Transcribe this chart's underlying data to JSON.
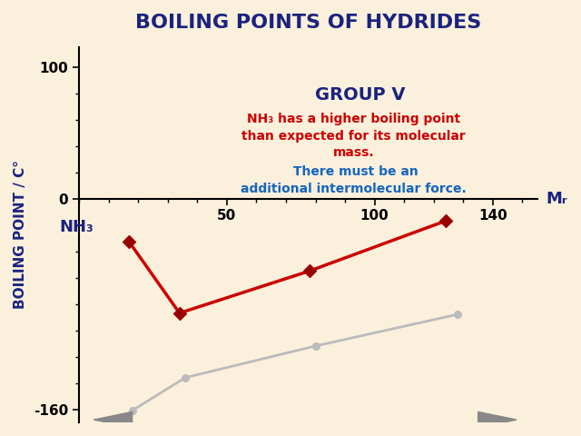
{
  "title": "BOILING POINTS OF HYDRIDES",
  "xlabel": "Mᵣ",
  "ylabel": "BOILING POINT / C°",
  "background_color": "#FAF0DC",
  "xlim": [
    0,
    155
  ],
  "ylim": [
    -170,
    115
  ],
  "yticks": [
    0,
    100,
    -160
  ],
  "xticks": [
    50,
    100,
    140
  ],
  "group_v_label": "GROUP V",
  "annotation_red": "NH₃ has a higher boiling point\nthan expected for its molecular\nmass.",
  "annotation_blue": " There must be an\nadditional intermolecular force.",
  "nh3_label": "NH₃",
  "red_x": [
    17,
    34,
    78,
    124
  ],
  "red_y": [
    -33,
    -87,
    -55,
    -17
  ],
  "gray_x": [
    18,
    36,
    80,
    128
  ],
  "gray_y": [
    -161,
    -136,
    -112,
    -88
  ],
  "red_color": "#CC0000",
  "dark_red_color": "#990000",
  "gray_color": "#BBBBBB",
  "title_color": "#1a237e",
  "group_label_color": "#1a237e",
  "xlabel_color": "#1a237e",
  "annotation_red_color": "#CC0000",
  "annotation_blue_color": "#1565C0",
  "axis_label_color": "#1a237e",
  "nh3_label_color": "#1a237e"
}
